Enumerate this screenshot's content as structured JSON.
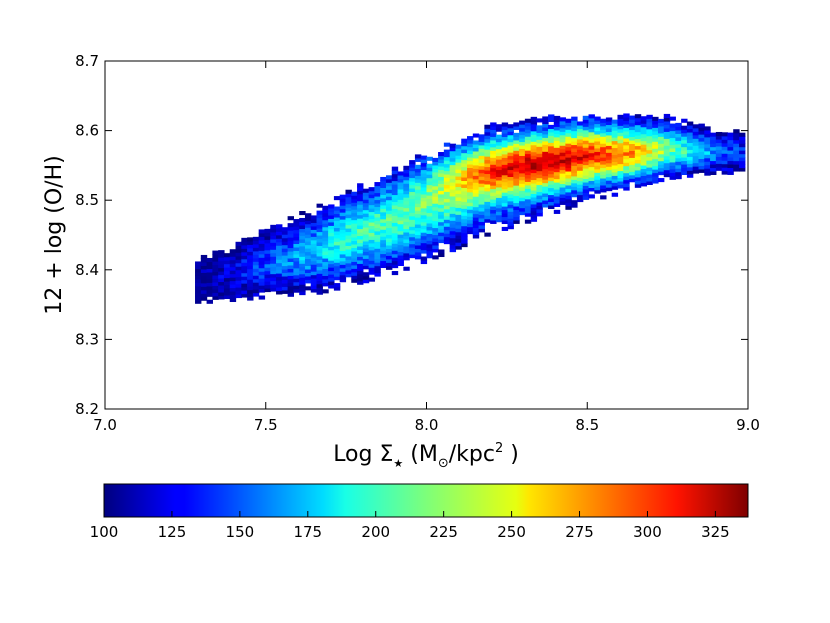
{
  "chart_data": {
    "type": "heatmap",
    "title": "",
    "xlabel": "Log Σ★ (M⊙/kpc² )",
    "xlabel_parts": {
      "pre": "Log Σ",
      "star": "★",
      "mid": " (M",
      "sun": "⊙",
      "post": "/kpc",
      "sup": "2",
      "end": " )"
    },
    "ylabel": "12 + log (O/H)",
    "xlim": [
      7.0,
      9.0
    ],
    "ylim": [
      8.2,
      8.7
    ],
    "x_ticks": [
      "7.0",
      "7.5",
      "8.0",
      "8.5",
      "9.0"
    ],
    "x_tick_values": [
      7.0,
      7.5,
      8.0,
      8.5,
      9.0
    ],
    "y_ticks": [
      "8.2",
      "8.3",
      "8.4",
      "8.5",
      "8.6",
      "8.7"
    ],
    "y_tick_values": [
      8.2,
      8.3,
      8.4,
      8.5,
      8.6,
      8.7
    ],
    "colorscale": "jet",
    "colorbar": {
      "orientation": "horizontal",
      "location": "bottom",
      "range": [
        100,
        337
      ],
      "ticks": [
        "100",
        "125",
        "150",
        "175",
        "200",
        "225",
        "250",
        "275",
        "300",
        "325"
      ],
      "tick_values": [
        100,
        125,
        150,
        175,
        200,
        225,
        250,
        275,
        300,
        325
      ]
    },
    "density_model": {
      "description_of_distribution": "elongated band of 2D histogram counts",
      "ridge": [
        {
          "x": 7.3,
          "y": 8.385
        },
        {
          "x": 7.6,
          "y": 8.42
        },
        {
          "x": 7.9,
          "y": 8.47
        },
        {
          "x": 8.2,
          "y": 8.53
        },
        {
          "x": 8.5,
          "y": 8.565
        },
        {
          "x": 8.75,
          "y": 8.575
        },
        {
          "x": 8.95,
          "y": 8.57
        }
      ],
      "x_range": [
        7.28,
        8.98
      ],
      "y_range": [
        8.315,
        8.62
      ],
      "peak_count": 330,
      "peak_location": {
        "x": 8.28,
        "y": 8.56
      },
      "bin_width_x": 0.018,
      "bin_width_y": 0.005
    }
  }
}
